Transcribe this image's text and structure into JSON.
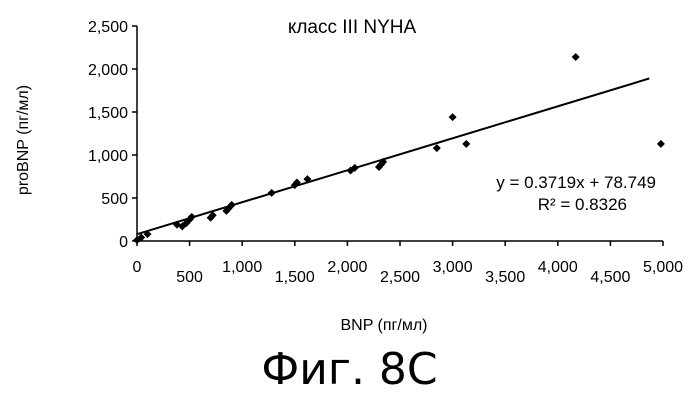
{
  "chart_data": {
    "type": "scatter",
    "title": "класс III NYHA",
    "xlabel": "BNP (пг/мл)",
    "ylabel": "proBNP (пг/мл)",
    "xlim": [
      0,
      5000
    ],
    "ylim": [
      0,
      2500
    ],
    "x_ticks": [
      {
        "value": 0,
        "label": "0"
      },
      {
        "value": 500,
        "label": "500"
      },
      {
        "value": 1000,
        "label": "1,000"
      },
      {
        "value": 1500,
        "label": "1,500"
      },
      {
        "value": 2000,
        "label": "2,000"
      },
      {
        "value": 2500,
        "label": "2,500"
      },
      {
        "value": 3000,
        "label": "3,000"
      },
      {
        "value": 3500,
        "label": "3,500"
      },
      {
        "value": 4000,
        "label": "4,000"
      },
      {
        "value": 4500,
        "label": "4,500"
      },
      {
        "value": 5000,
        "label": "5,000"
      }
    ],
    "y_ticks": [
      {
        "value": 0,
        "label": "0"
      },
      {
        "value": 500,
        "label": "500"
      },
      {
        "value": 1000,
        "label": "1,000"
      },
      {
        "value": 1500,
        "label": "1,500"
      },
      {
        "value": 2000,
        "label": "2,000"
      },
      {
        "value": 2500,
        "label": "2,500"
      }
    ],
    "grid": false,
    "points": [
      {
        "x": 0,
        "y": 10
      },
      {
        "x": 40,
        "y": 40
      },
      {
        "x": 100,
        "y": 80
      },
      {
        "x": 380,
        "y": 190
      },
      {
        "x": 430,
        "y": 170
      },
      {
        "x": 470,
        "y": 210
      },
      {
        "x": 500,
        "y": 250
      },
      {
        "x": 520,
        "y": 280
      },
      {
        "x": 700,
        "y": 270
      },
      {
        "x": 720,
        "y": 300
      },
      {
        "x": 850,
        "y": 350
      },
      {
        "x": 870,
        "y": 380
      },
      {
        "x": 900,
        "y": 420
      },
      {
        "x": 1280,
        "y": 560
      },
      {
        "x": 1500,
        "y": 650
      },
      {
        "x": 1520,
        "y": 680
      },
      {
        "x": 1620,
        "y": 720
      },
      {
        "x": 2030,
        "y": 820
      },
      {
        "x": 2070,
        "y": 850
      },
      {
        "x": 2300,
        "y": 860
      },
      {
        "x": 2320,
        "y": 890
      },
      {
        "x": 2340,
        "y": 920
      },
      {
        "x": 2850,
        "y": 1080
      },
      {
        "x": 3000,
        "y": 1440
      },
      {
        "x": 3130,
        "y": 1130
      },
      {
        "x": 4170,
        "y": 2140
      },
      {
        "x": 4980,
        "y": 1130
      }
    ],
    "trendline": {
      "slope": 0.3719,
      "intercept": 78.749,
      "x_range": [
        0,
        4870
      ],
      "equation_label": "y = 0.3719x + 78.749",
      "r2_label": "R² = 0.8326"
    }
  },
  "caption": "Фиг. 8C"
}
